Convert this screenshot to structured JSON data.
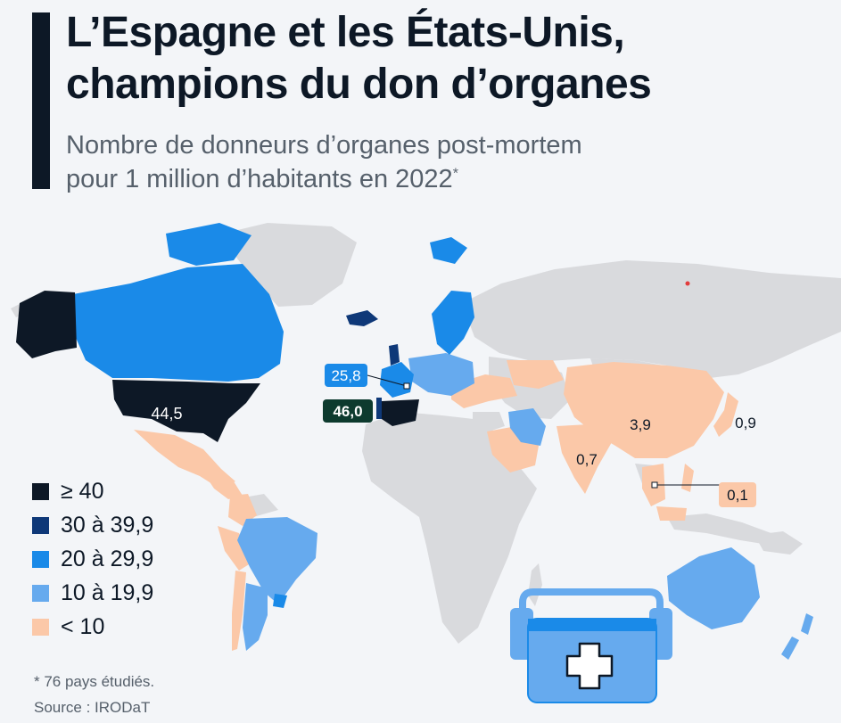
{
  "header": {
    "title_line1": "L’Espagne et les États-Unis,",
    "title_line2": "champions du don d’organes",
    "subtitle_line1": "Nombre de donneurs d’organes post-mortem",
    "subtitle_line2": "pour 1 million d’habitants en 2022",
    "subtitle_note_mark": "*"
  },
  "map": {
    "colors": {
      "ge40": "#0d1826",
      "c30_39": "#0e3878",
      "c20_29": "#1a8ae8",
      "c10_19": "#66aaee",
      "lt10": "#fbc8a8",
      "no_data": "#d9dadd"
    },
    "labels": {
      "usa": "44,5",
      "spain": "46,0",
      "france": "25,8",
      "china": "3,9",
      "japan": "0,9",
      "india": "0,7",
      "vietnam": "0,1"
    },
    "cooler_icon": "medical-cooler-icon"
  },
  "legend": {
    "items": [
      {
        "label": "≥ 40",
        "color": "#0d1826"
      },
      {
        "label": "30 à 39,9",
        "color": "#0e3878"
      },
      {
        "label": "20 à 29,9",
        "color": "#1a8ae8"
      },
      {
        "label": "10 à 19,9",
        "color": "#66aaee"
      },
      {
        "label": "< 10",
        "color": "#fbc8a8"
      }
    ]
  },
  "footer": {
    "note": "* 76 pays étudiés.",
    "source": "Source : IRODaT"
  }
}
